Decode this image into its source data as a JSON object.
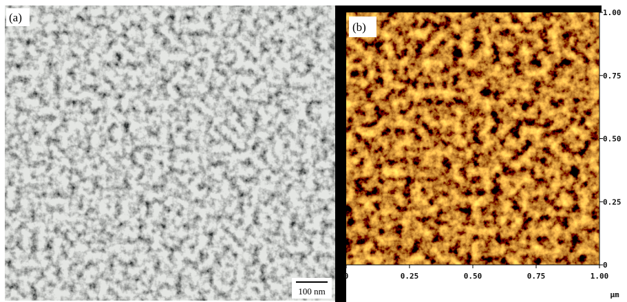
{
  "panel_a": {
    "label": "(a)",
    "scale_bar": "100 nm"
  },
  "panel_b": {
    "label": "(b)",
    "x_ticks": [
      "0",
      "0.25",
      "0.50",
      "0.75",
      "1.00"
    ],
    "y_ticks": [
      "0",
      "0.25",
      "0.50",
      "0.75",
      "1.00"
    ],
    "unit": "µm"
  }
}
